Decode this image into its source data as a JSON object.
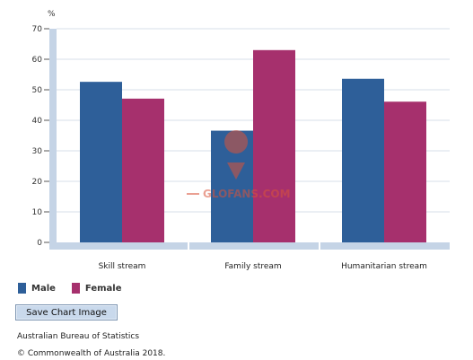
{
  "chart_data": {
    "type": "bar",
    "title": "",
    "xlabel": "",
    "ylabel": "%",
    "ylim": [
      0,
      70
    ],
    "yticks": [
      0,
      10,
      20,
      30,
      40,
      50,
      60,
      70
    ],
    "categories": [
      "Skill stream",
      "Family stream",
      "Humanitarian stream"
    ],
    "series": [
      {
        "name": "Male",
        "values": [
          52.6,
          36.6,
          53.6
        ],
        "color": "#2e5f99"
      },
      {
        "name": "Female",
        "values": [
          47.1,
          63.0,
          46.1
        ],
        "color": "#a6306d"
      }
    ],
    "grid": true,
    "legend_position": "bottom-left"
  },
  "controls": {
    "save_label": "Save Chart Image"
  },
  "footer": {
    "source": "Australian Bureau of Statistics",
    "copyright": "© Commonwealth of Australia 2018."
  },
  "watermark": {
    "text": "GLOFANS.COM"
  }
}
